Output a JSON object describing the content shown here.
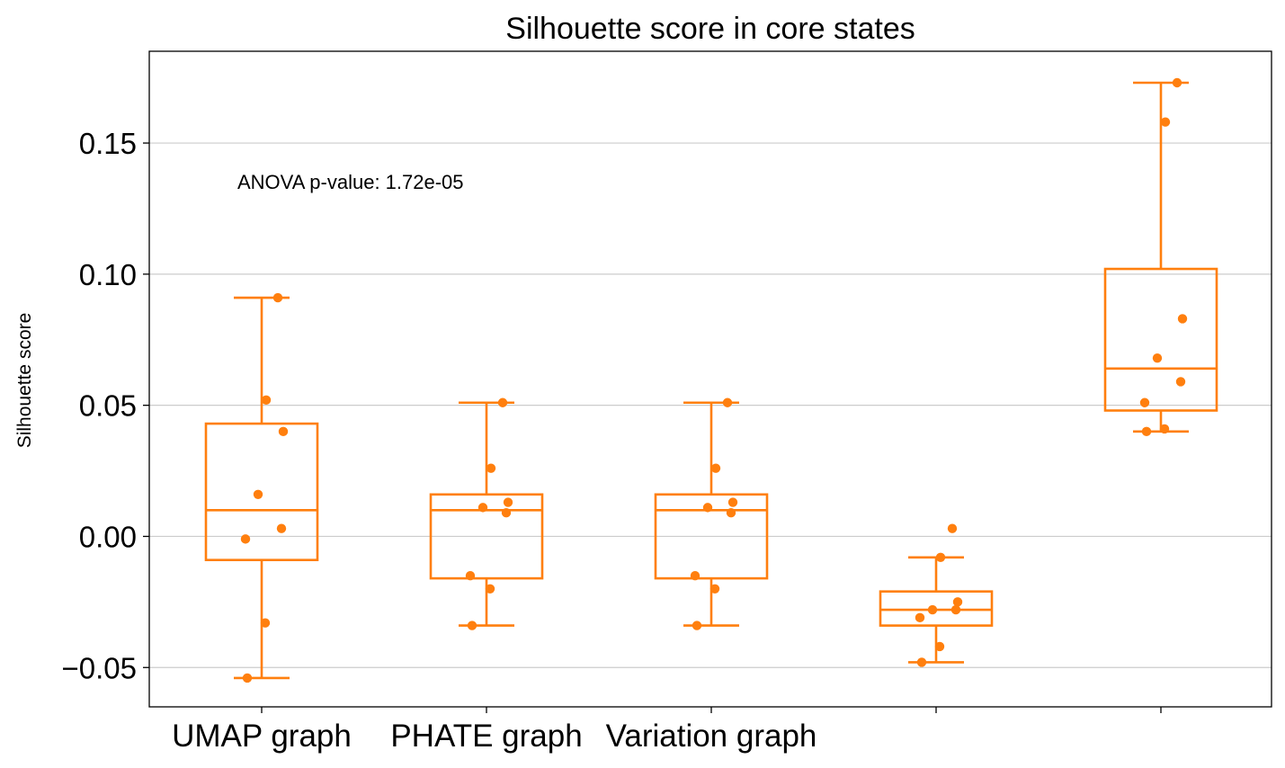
{
  "chart_data": {
    "type": "box",
    "title": "Silhouette score in core states",
    "xlabel": "",
    "ylabel": "Silhouette score",
    "ylim": [
      -0.065,
      0.185
    ],
    "yticks": [
      -0.05,
      0.0,
      0.05,
      0.1,
      0.15
    ],
    "ytick_labels": [
      "−0.05",
      "0.00",
      "0.05",
      "0.10",
      "0.15"
    ],
    "grid": "horizontal",
    "annotation": "ANOVA p-value: 1.72e-05",
    "color": "#ff7f0e",
    "categories": [
      "UMAP graph",
      "PHATE graph",
      "Variation graph",
      "",
      ""
    ],
    "boxes": [
      {
        "whisker_low": -0.054,
        "q1": -0.009,
        "median": 0.01,
        "q3": 0.043,
        "whisker_high": 0.091,
        "points": [
          0.091,
          0.052,
          0.04,
          0.016,
          0.003,
          -0.001,
          -0.033,
          -0.054
        ]
      },
      {
        "whisker_low": -0.034,
        "q1": -0.016,
        "median": 0.01,
        "q3": 0.016,
        "whisker_high": 0.051,
        "points": [
          0.051,
          0.026,
          0.013,
          0.011,
          0.009,
          -0.015,
          -0.02,
          -0.034
        ]
      },
      {
        "whisker_low": -0.034,
        "q1": -0.016,
        "median": 0.01,
        "q3": 0.016,
        "whisker_high": 0.051,
        "points": [
          0.051,
          0.026,
          0.013,
          0.011,
          0.009,
          -0.015,
          -0.02,
          -0.034
        ]
      },
      {
        "whisker_low": -0.048,
        "q1": -0.034,
        "median": -0.028,
        "q3": -0.021,
        "whisker_high": -0.008,
        "points": [
          0.003,
          -0.008,
          -0.025,
          -0.028,
          -0.028,
          -0.031,
          -0.042,
          -0.048
        ]
      },
      {
        "whisker_low": 0.04,
        "q1": 0.048,
        "median": 0.064,
        "q3": 0.102,
        "whisker_high": 0.173,
        "points": [
          0.173,
          0.158,
          0.083,
          0.068,
          0.059,
          0.051,
          0.041,
          0.04
        ]
      }
    ]
  }
}
